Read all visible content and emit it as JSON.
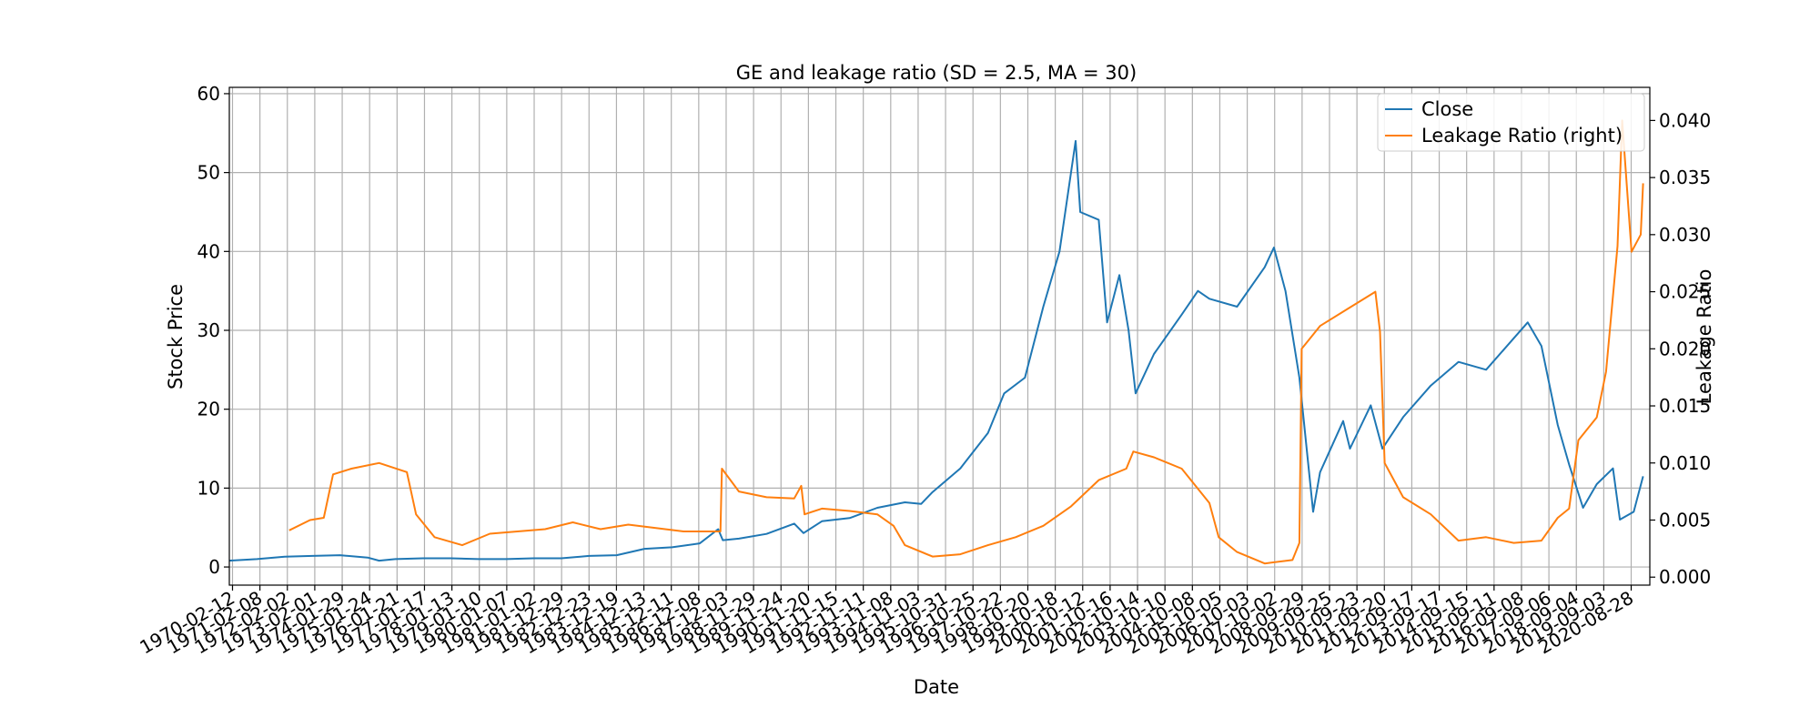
{
  "chart_data": {
    "type": "line",
    "title": "GE and leakage ratio (SD = 2.5, MA = 30)",
    "xlabel": "Date",
    "ylabel": "Stock Price",
    "ylabel_right": "Leakage Ratio",
    "ylim": [
      -2.3,
      60.8
    ],
    "ylim_right": [
      -0.0007,
      0.0429
    ],
    "yticks": [
      0,
      10,
      20,
      30,
      40,
      50,
      60
    ],
    "yticks_right": [
      "0.000",
      "0.005",
      "0.010",
      "0.015",
      "0.020",
      "0.025",
      "0.030",
      "0.035",
      "0.040"
    ],
    "xlim": [
      "1970-01-01",
      "2021-05-01"
    ],
    "x_tick_labels": [
      "1970-02-12",
      "1971-02-08",
      "1972-02-02",
      "1973-02-01",
      "1974-01-29",
      "1975-01-24",
      "1976-01-21",
      "1977-01-17",
      "1978-01-13",
      "1979-01-10",
      "1980-01-07",
      "1981-01-02",
      "1981-12-29",
      "1982-12-23",
      "1983-12-19",
      "1984-12-13",
      "1985-12-11",
      "1986-12-08",
      "1987-12-03",
      "1988-11-29",
      "1989-11-24",
      "1990-11-20",
      "1991-11-15",
      "1992-11-11",
      "1993-11-08",
      "1994-11-03",
      "1995-10-31",
      "1996-10-25",
      "1997-10-22",
      "1998-10-20",
      "1999-10-18",
      "2000-10-12",
      "2001-10-16",
      "2002-10-14",
      "2003-10-10",
      "2004-10-08",
      "2005-10-05",
      "2006-10-03",
      "2007-10-02",
      "2008-09-29",
      "2009-09-25",
      "2010-09-23",
      "2011-09-20",
      "2012-09-17",
      "2013-09-17",
      "2014-09-15",
      "2015-09-11",
      "2016-09-08",
      "2017-09-06",
      "2018-09-04",
      "2019-09-03",
      "2020-08-28"
    ],
    "grid": true,
    "legend_position": "top-right",
    "series": [
      {
        "name": "Close",
        "axis": "left",
        "color": "#1f77b4",
        "points": [
          [
            "1970-01-02",
            0.8
          ],
          [
            "1971-01-01",
            1.0
          ],
          [
            "1972-01-01",
            1.3
          ],
          [
            "1973-01-01",
            1.4
          ],
          [
            "1974-01-01",
            1.5
          ],
          [
            "1975-01-01",
            1.2
          ],
          [
            "1975-06-01",
            0.8
          ],
          [
            "1976-01-01",
            1.0
          ],
          [
            "1977-01-01",
            1.1
          ],
          [
            "1978-01-01",
            1.1
          ],
          [
            "1979-01-01",
            1.0
          ],
          [
            "1980-01-01",
            1.0
          ],
          [
            "1981-01-01",
            1.1
          ],
          [
            "1982-01-01",
            1.1
          ],
          [
            "1983-01-01",
            1.4
          ],
          [
            "1984-01-01",
            1.5
          ],
          [
            "1985-01-01",
            2.3
          ],
          [
            "1986-01-01",
            2.5
          ],
          [
            "1987-01-01",
            3.0
          ],
          [
            "1987-09-01",
            4.8
          ],
          [
            "1987-11-01",
            3.4
          ],
          [
            "1988-06-01",
            3.6
          ],
          [
            "1989-06-01",
            4.2
          ],
          [
            "1990-06-01",
            5.5
          ],
          [
            "1990-10-01",
            4.3
          ],
          [
            "1991-06-01",
            5.8
          ],
          [
            "1992-06-01",
            6.2
          ],
          [
            "1993-06-01",
            7.5
          ],
          [
            "1994-06-01",
            8.2
          ],
          [
            "1995-01-01",
            8.0
          ],
          [
            "1995-06-01",
            9.5
          ],
          [
            "1996-06-01",
            12.5
          ],
          [
            "1997-06-01",
            17.0
          ],
          [
            "1998-01-01",
            22.0
          ],
          [
            "1998-10-01",
            24.0
          ],
          [
            "1999-06-01",
            33.0
          ],
          [
            "2000-01-01",
            40.0
          ],
          [
            "2000-08-01",
            54.0
          ],
          [
            "2000-10-01",
            45.0
          ],
          [
            "2001-06-01",
            44.0
          ],
          [
            "2001-09-20",
            31.0
          ],
          [
            "2002-03-01",
            37.0
          ],
          [
            "2002-07-01",
            30.0
          ],
          [
            "2002-10-01",
            22.0
          ],
          [
            "2003-06-01",
            27.0
          ],
          [
            "2004-06-01",
            32.0
          ],
          [
            "2005-01-01",
            35.0
          ],
          [
            "2005-06-01",
            34.0
          ],
          [
            "2006-06-01",
            33.0
          ],
          [
            "2007-06-01",
            38.0
          ],
          [
            "2007-10-01",
            40.5
          ],
          [
            "2008-03-01",
            35.0
          ],
          [
            "2008-09-01",
            24.0
          ],
          [
            "2009-03-01",
            7.0
          ],
          [
            "2009-06-01",
            12.0
          ],
          [
            "2010-04-01",
            18.5
          ],
          [
            "2010-07-01",
            15.0
          ],
          [
            "2011-04-01",
            20.5
          ],
          [
            "2011-09-01",
            15.0
          ],
          [
            "2012-06-01",
            19.0
          ],
          [
            "2013-06-01",
            23.0
          ],
          [
            "2014-06-01",
            26.0
          ],
          [
            "2015-06-01",
            25.0
          ],
          [
            "2016-06-01",
            29.0
          ],
          [
            "2016-12-01",
            31.0
          ],
          [
            "2017-06-01",
            28.0
          ],
          [
            "2018-01-01",
            18.0
          ],
          [
            "2018-06-01",
            13.0
          ],
          [
            "2018-12-01",
            7.5
          ],
          [
            "2019-06-01",
            10.5
          ],
          [
            "2020-01-01",
            12.5
          ],
          [
            "2020-04-01",
            6.0
          ],
          [
            "2020-10-01",
            7.0
          ],
          [
            "2021-02-01",
            11.5
          ]
        ]
      },
      {
        "name": "Leakage Ratio (right)",
        "axis": "right",
        "color": "#ff7f0e",
        "points": [
          [
            "1972-03-01",
            0.0041
          ],
          [
            "1972-12-01",
            0.005
          ],
          [
            "1973-06-01",
            0.0052
          ],
          [
            "1973-10-01",
            0.009
          ],
          [
            "1974-06-01",
            0.0095
          ],
          [
            "1975-06-01",
            0.01
          ],
          [
            "1976-06-01",
            0.0092
          ],
          [
            "1976-10-01",
            0.0055
          ],
          [
            "1977-06-01",
            0.0035
          ],
          [
            "1978-06-01",
            0.0028
          ],
          [
            "1979-06-01",
            0.0038
          ],
          [
            "1980-06-01",
            0.004
          ],
          [
            "1981-06-01",
            0.0042
          ],
          [
            "1982-06-01",
            0.0048
          ],
          [
            "1983-06-01",
            0.0042
          ],
          [
            "1984-06-01",
            0.0046
          ],
          [
            "1985-06-01",
            0.0043
          ],
          [
            "1986-06-01",
            0.004
          ],
          [
            "1987-10-01",
            0.004
          ],
          [
            "1987-10-20",
            0.0095
          ],
          [
            "1988-06-01",
            0.0075
          ],
          [
            "1989-06-01",
            0.007
          ],
          [
            "1990-06-01",
            0.0069
          ],
          [
            "1990-09-01",
            0.008
          ],
          [
            "1990-10-15",
            0.0055
          ],
          [
            "1991-06-01",
            0.006
          ],
          [
            "1992-06-01",
            0.0058
          ],
          [
            "1993-06-01",
            0.0055
          ],
          [
            "1994-01-01",
            0.0045
          ],
          [
            "1994-06-01",
            0.0028
          ],
          [
            "1995-06-01",
            0.0018
          ],
          [
            "1996-06-01",
            0.002
          ],
          [
            "1997-06-01",
            0.0028
          ],
          [
            "1998-06-01",
            0.0035
          ],
          [
            "1999-06-01",
            0.0045
          ],
          [
            "2000-06-01",
            0.0062
          ],
          [
            "2001-06-01",
            0.0085
          ],
          [
            "2002-06-01",
            0.0095
          ],
          [
            "2002-09-01",
            0.011
          ],
          [
            "2003-06-01",
            0.0105
          ],
          [
            "2004-06-01",
            0.0095
          ],
          [
            "2005-06-01",
            0.0065
          ],
          [
            "2005-10-01",
            0.0035
          ],
          [
            "2006-06-01",
            0.0022
          ],
          [
            "2007-06-01",
            0.0012
          ],
          [
            "2008-06-01",
            0.0015
          ],
          [
            "2008-09-01",
            0.003
          ],
          [
            "2008-10-01",
            0.02
          ],
          [
            "2009-06-01",
            0.022
          ],
          [
            "2010-06-01",
            0.0235
          ],
          [
            "2011-06-01",
            0.025
          ],
          [
            "2011-08-01",
            0.0215
          ],
          [
            "2011-10-01",
            0.01
          ],
          [
            "2012-06-01",
            0.007
          ],
          [
            "2013-06-01",
            0.0055
          ],
          [
            "2014-06-01",
            0.0032
          ],
          [
            "2015-06-01",
            0.0035
          ],
          [
            "2016-06-01",
            0.003
          ],
          [
            "2017-06-01",
            0.0032
          ],
          [
            "2018-01-01",
            0.0052
          ],
          [
            "2018-06-01",
            0.006
          ],
          [
            "2018-10-01",
            0.012
          ],
          [
            "2019-06-01",
            0.014
          ],
          [
            "2019-10-01",
            0.018
          ],
          [
            "2020-03-01",
            0.029
          ],
          [
            "2020-05-01",
            0.04
          ],
          [
            "2020-09-01",
            0.0285
          ],
          [
            "2021-01-01",
            0.03
          ],
          [
            "2021-02-01",
            0.0345
          ]
        ]
      }
    ]
  }
}
